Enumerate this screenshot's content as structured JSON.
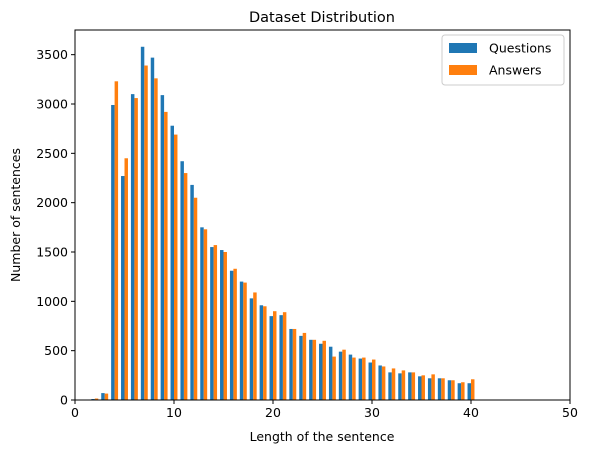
{
  "chart_data": {
    "type": "bar",
    "title": "Dataset Distribution",
    "xlabel": "Length of the sentence",
    "ylabel": "Number of sentences",
    "xlim": [
      0,
      50
    ],
    "ylim": [
      0,
      3750
    ],
    "xticks": [
      0,
      10,
      20,
      30,
      40,
      50
    ],
    "yticks": [
      0,
      500,
      1000,
      1500,
      2000,
      2500,
      3000,
      3500
    ],
    "legend_position": "top-right",
    "x": [
      2,
      3,
      4,
      5,
      6,
      7,
      8,
      9,
      10,
      11,
      12,
      13,
      14,
      15,
      16,
      17,
      18,
      19,
      20,
      21,
      22,
      23,
      24,
      25,
      26,
      27,
      28,
      29,
      30,
      31,
      32,
      33,
      34,
      35,
      36,
      37,
      38,
      39,
      40
    ],
    "series": [
      {
        "name": "Questions",
        "color": "#1f77b4",
        "values": [
          10,
          70,
          2990,
          2270,
          3100,
          3580,
          3470,
          3090,
          2780,
          2420,
          2180,
          1750,
          1550,
          1520,
          1310,
          1200,
          1030,
          960,
          850,
          860,
          720,
          650,
          610,
          570,
          540,
          490,
          460,
          420,
          380,
          350,
          280,
          270,
          280,
          240,
          220,
          220,
          200,
          170,
          170
        ]
      },
      {
        "name": "Answers",
        "color": "#ff7f0e",
        "values": [
          15,
          65,
          3230,
          2450,
          3060,
          3390,
          3260,
          2920,
          2690,
          2300,
          2050,
          1730,
          1570,
          1500,
          1330,
          1190,
          1090,
          950,
          900,
          890,
          720,
          680,
          610,
          600,
          440,
          510,
          430,
          430,
          410,
          340,
          320,
          300,
          280,
          250,
          260,
          220,
          200,
          180,
          210
        ]
      }
    ]
  }
}
